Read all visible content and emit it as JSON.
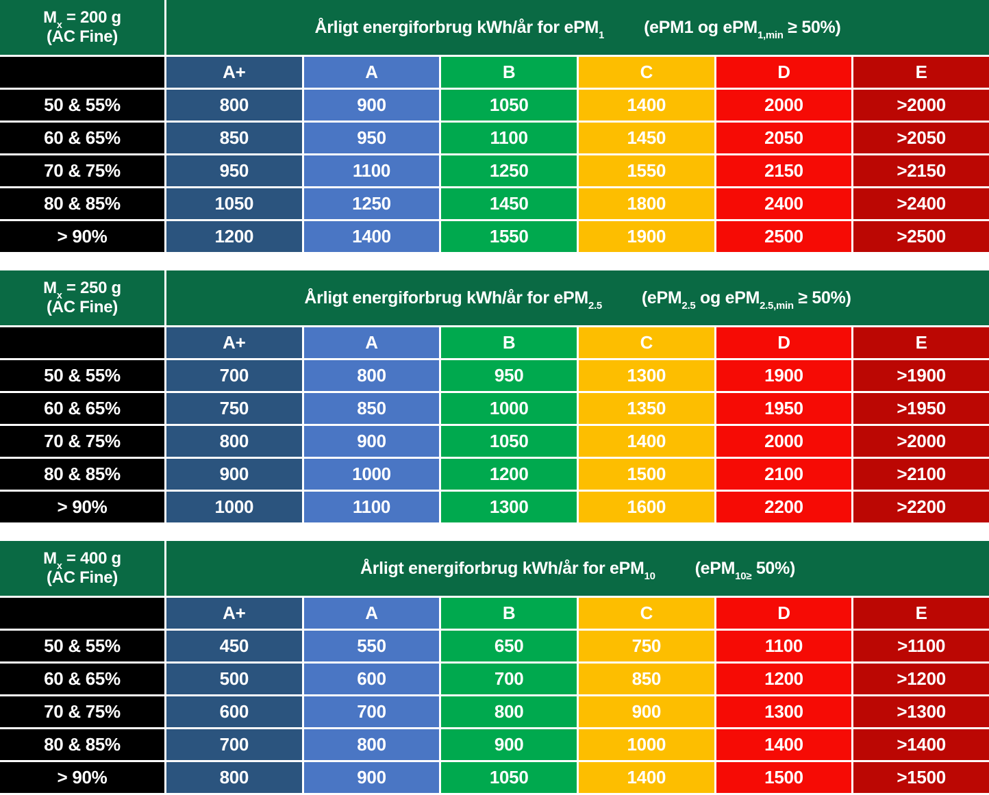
{
  "styles": {
    "header_green": "#0A6A44",
    "label_black": "#000000",
    "text_white": "#FFFFFF",
    "background_white": "#FFFFFF",
    "grade_colors": [
      "#2B547E",
      "#4A76C4",
      "#00A94E",
      "#FDBE00",
      "#F60B05",
      "#BB0703"
    ]
  },
  "units": "kWh/år",
  "chart_data": [
    {
      "type": "table",
      "mass_header": "Mx = 200 g (AC Fine)",
      "mass_segments": [
        {
          "t": "M"
        },
        {
          "t": "x",
          "sub": true
        },
        {
          "t": " = 200 g"
        },
        {
          "br": true
        },
        {
          "t": "(AC Fine)"
        }
      ],
      "title": "Årligt energiforbrug kWh/år for ePM1 (ePM1 og ePM1,min ≥ 50%)",
      "title_segments": [
        {
          "t": "Årligt energiforbrug kWh/år for ePM"
        },
        {
          "t": "1",
          "sub": true
        },
        {
          "gap": true
        },
        {
          "t": "(ePM1 og ePM"
        },
        {
          "t": "1,min",
          "sub": true
        },
        {
          "t": " ≥ 50%)"
        }
      ],
      "columns": [
        "A+",
        "A",
        "B",
        "C",
        "D",
        "E"
      ],
      "row_labels": [
        "50 & 55%",
        "60 & 65%",
        "70 & 75%",
        "80 & 85%",
        "> 90%"
      ],
      "rows": [
        [
          "800",
          "900",
          "1050",
          "1400",
          "2000",
          ">2000"
        ],
        [
          "850",
          "950",
          "1100",
          "1450",
          "2050",
          ">2050"
        ],
        [
          "950",
          "1100",
          "1250",
          "1550",
          "2150",
          ">2150"
        ],
        [
          "1050",
          "1250",
          "1450",
          "1800",
          "2400",
          ">2400"
        ],
        [
          "1200",
          "1400",
          "1550",
          "1900",
          "2500",
          ">2500"
        ]
      ]
    },
    {
      "type": "table",
      "mass_header": "Mx = 250 g (AC Fine)",
      "mass_segments": [
        {
          "t": "M"
        },
        {
          "t": "x",
          "sub": true
        },
        {
          "t": " = 250 g"
        },
        {
          "br": true
        },
        {
          "t": "(AC Fine)"
        }
      ],
      "title": "Årligt energiforbrug kWh/år for ePM2.5 (ePM2.5 og ePM2.5,min ≥ 50%)",
      "title_segments": [
        {
          "t": "Årligt energiforbrug kWh/år for ePM"
        },
        {
          "t": "2.5",
          "sub": true
        },
        {
          "gap": true
        },
        {
          "t": "(ePM"
        },
        {
          "t": "2.5",
          "sub": true
        },
        {
          "t": " og ePM"
        },
        {
          "t": "2.5,min",
          "sub": true
        },
        {
          "t": " ≥ 50%)"
        }
      ],
      "columns": [
        "A+",
        "A",
        "B",
        "C",
        "D",
        "E"
      ],
      "row_labels": [
        "50 & 55%",
        "60 & 65%",
        "70 & 75%",
        "80 & 85%",
        "> 90%"
      ],
      "rows": [
        [
          "700",
          "800",
          "950",
          "1300",
          "1900",
          ">1900"
        ],
        [
          "750",
          "850",
          "1000",
          "1350",
          "1950",
          ">1950"
        ],
        [
          "800",
          "900",
          "1050",
          "1400",
          "2000",
          ">2000"
        ],
        [
          "900",
          "1000",
          "1200",
          "1500",
          "2100",
          ">2100"
        ],
        [
          "1000",
          "1100",
          "1300",
          "1600",
          "2200",
          ">2200"
        ]
      ]
    },
    {
      "type": "table",
      "mass_header": "Mx = 400 g (AC Fine)",
      "mass_segments": [
        {
          "t": "M"
        },
        {
          "t": "x",
          "sub": true
        },
        {
          "t": " = 400 g"
        },
        {
          "br": true
        },
        {
          "t": "(AC Fine)"
        }
      ],
      "title": "Årligt energiforbrug kWh/år for ePM10 (ePM10≥ 50%)",
      "title_segments": [
        {
          "t": "Årligt energiforbrug kWh/år for ePM"
        },
        {
          "t": "10",
          "sub": true
        },
        {
          "gap": true
        },
        {
          "t": "(ePM"
        },
        {
          "t": "10≥",
          "sub": true
        },
        {
          "t": " 50%)"
        }
      ],
      "columns": [
        "A+",
        "A",
        "B",
        "C",
        "D",
        "E"
      ],
      "row_labels": [
        "50 & 55%",
        "60 & 65%",
        "70 & 75%",
        "80 & 85%",
        "> 90%"
      ],
      "rows": [
        [
          "450",
          "550",
          "650",
          "750",
          "1100",
          ">1100"
        ],
        [
          "500",
          "600",
          "700",
          "850",
          "1200",
          ">1200"
        ],
        [
          "600",
          "700",
          "800",
          "900",
          "1300",
          ">1300"
        ],
        [
          "700",
          "800",
          "900",
          "1000",
          "1400",
          ">1400"
        ],
        [
          "800",
          "900",
          "1050",
          "1400",
          "1500",
          ">1500"
        ]
      ]
    }
  ]
}
